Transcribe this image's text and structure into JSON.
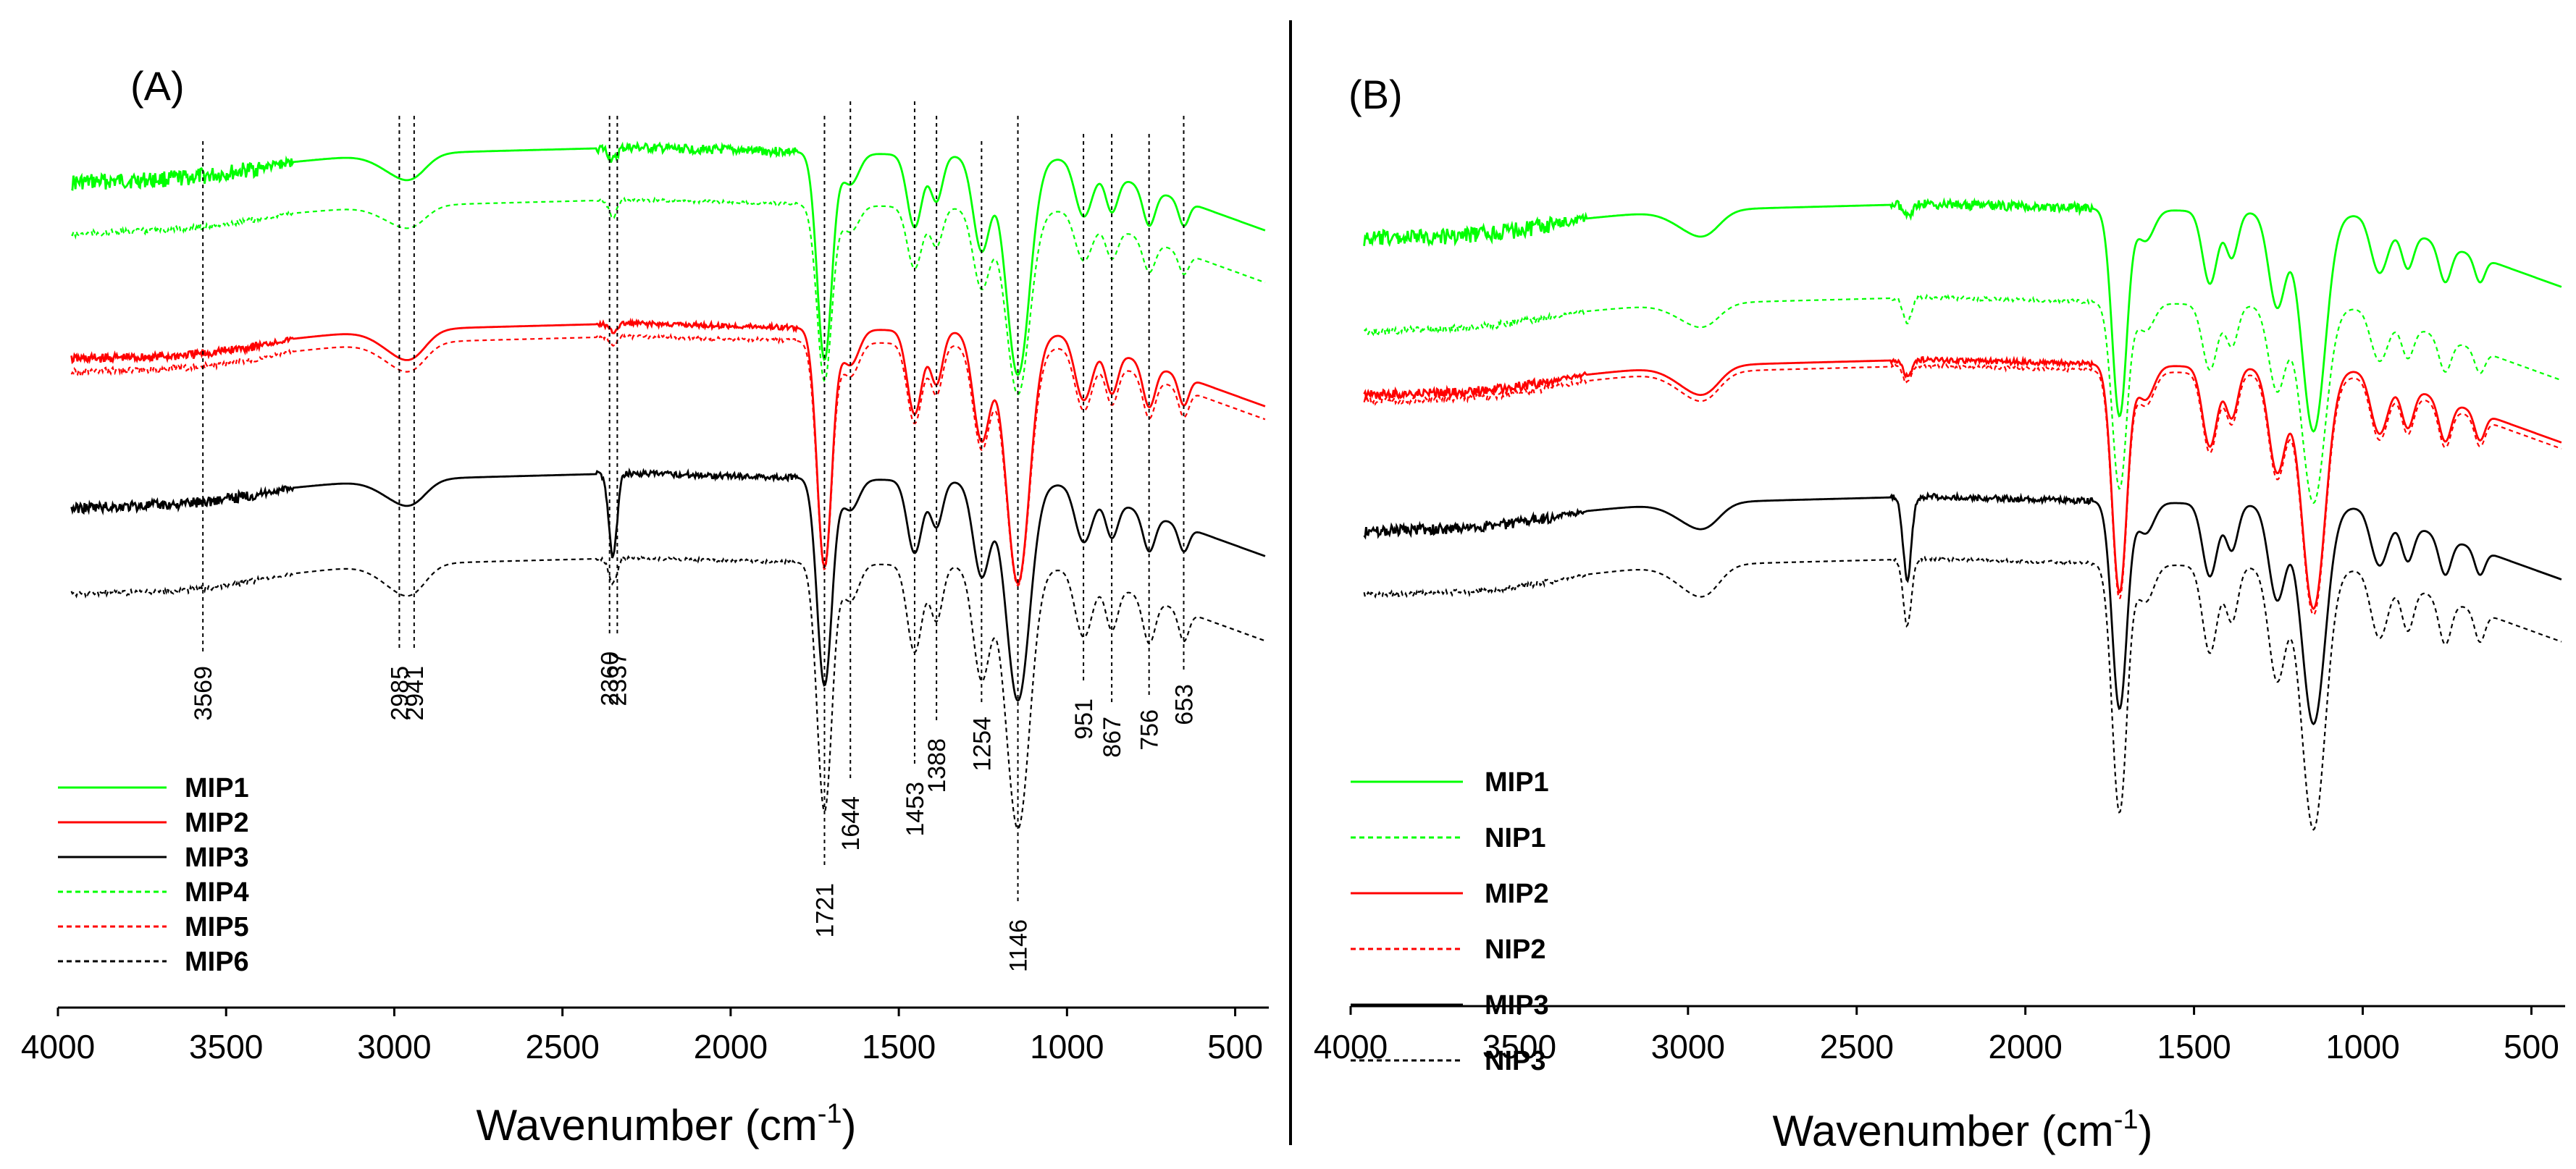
{
  "chart_data": [
    {
      "type": "line",
      "panel": "(A)",
      "title": "",
      "xlabel": "Wavenumber (cm",
      "xlabel_sup": "-1",
      "xlabel_end": ")",
      "ylabel": "",
      "xlim": [
        4000,
        400
      ],
      "xticks": [
        4000,
        3500,
        3000,
        2500,
        2000,
        1500,
        1000,
        500
      ],
      "grid": false,
      "legend": "bottom-left",
      "series": [
        {
          "name": "MIP1",
          "color": "#00ff00",
          "dash": "solid",
          "offset": 0.05,
          "noise": 14,
          "depth": 1.0,
          "sharp2360": 0.15
        },
        {
          "name": "MIP2",
          "color": "#ff0000",
          "dash": "solid",
          "offset": 0.32,
          "noise": 8,
          "depth": 1.15,
          "sharp2360": 0.1
        },
        {
          "name": "MIP3",
          "color": "#000000",
          "dash": "solid",
          "offset": 0.55,
          "noise": 9,
          "depth": 1.0,
          "sharp2360": 1.0
        },
        {
          "name": "MIP4",
          "color": "#00ff00",
          "dash": "dashed",
          "offset": 0.13,
          "noise": 5,
          "depth": 0.85,
          "sharp2360": 0.2
        },
        {
          "name": "MIP5",
          "color": "#ff0000",
          "dash": "dashed",
          "offset": 0.34,
          "noise": 6,
          "depth": 1.1,
          "sharp2360": 0.1
        },
        {
          "name": "MIP6",
          "color": "#000000",
          "dash": "dashed",
          "offset": 0.68,
          "noise": 5,
          "depth": 1.2,
          "sharp2360": 0.3
        }
      ],
      "annotations": [
        "3569",
        "2985",
        "2941",
        "2360",
        "2337",
        "1721",
        "1644",
        "1453",
        "1388",
        "1254",
        "1146",
        "951",
        "867",
        "756",
        "653"
      ]
    },
    {
      "type": "line",
      "panel": "(B)",
      "title": "",
      "xlabel": "Wavenumber (cm",
      "xlabel_sup": "-1",
      "xlabel_end": ")",
      "ylabel": "",
      "xlim": [
        4000,
        400
      ],
      "xticks": [
        4000,
        3500,
        3000,
        2500,
        2000,
        1500,
        1000,
        500
      ],
      "grid": false,
      "legend": "bottom-left",
      "series": [
        {
          "name": "MIP1",
          "color": "#00ff00",
          "dash": "solid",
          "offset": 0.05,
          "noise": 14,
          "depth": 1.0,
          "sharp2360": 0.15
        },
        {
          "name": "NIP1",
          "color": "#00ff00",
          "dash": "dashed",
          "offset": 0.2,
          "noise": 6,
          "depth": 0.9,
          "sharp2360": 0.3
        },
        {
          "name": "MIP2",
          "color": "#ff0000",
          "dash": "solid",
          "offset": 0.3,
          "noise": 8,
          "depth": 1.1,
          "sharp2360": 0.2
        },
        {
          "name": "NIP2",
          "color": "#ff0000",
          "dash": "dashed",
          "offset": 0.31,
          "noise": 6,
          "depth": 1.1,
          "sharp2360": 0.2
        },
        {
          "name": "MIP3",
          "color": "#000000",
          "dash": "solid",
          "offset": 0.52,
          "noise": 9,
          "depth": 1.0,
          "sharp2360": 1.0
        },
        {
          "name": "NIP3",
          "color": "#000000",
          "dash": "dashed",
          "offset": 0.62,
          "noise": 5,
          "depth": 1.2,
          "sharp2360": 0.8
        }
      ],
      "annotations": []
    }
  ]
}
